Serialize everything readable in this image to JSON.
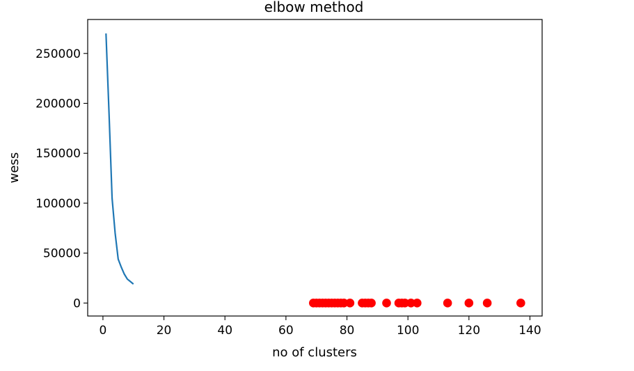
{
  "chart_data": {
    "type": "line",
    "title": "elbow method",
    "xlabel": "no of clusters",
    "ylabel": "wess",
    "xlim": [
      -5,
      144
    ],
    "ylim": [
      -13000,
      284000
    ],
    "xticks": [
      0,
      20,
      40,
      60,
      80,
      100,
      120,
      140
    ],
    "yticks": [
      0,
      50000,
      100000,
      150000,
      200000,
      250000
    ],
    "grid": false,
    "series": [
      {
        "type": "line",
        "color": "#1f77b4",
        "x": [
          1,
          2,
          3,
          4,
          5,
          6,
          7,
          8,
          9,
          10
        ],
        "y": [
          270000,
          190000,
          105000,
          70000,
          44000,
          36000,
          29000,
          24000,
          21500,
          19000
        ]
      },
      {
        "type": "scatter",
        "color": "#ff0000",
        "x": [
          69,
          70,
          71,
          72,
          73,
          74,
          75,
          76,
          77,
          78,
          79,
          81,
          85,
          86,
          87,
          88,
          93,
          97,
          98,
          99,
          101,
          103,
          113,
          120,
          126,
          137
        ],
        "y": [
          0,
          0,
          0,
          0,
          0,
          0,
          0,
          0,
          0,
          0,
          0,
          0,
          0,
          0,
          0,
          0,
          0,
          0,
          0,
          0,
          0,
          0,
          0,
          0,
          0,
          0
        ]
      }
    ]
  }
}
